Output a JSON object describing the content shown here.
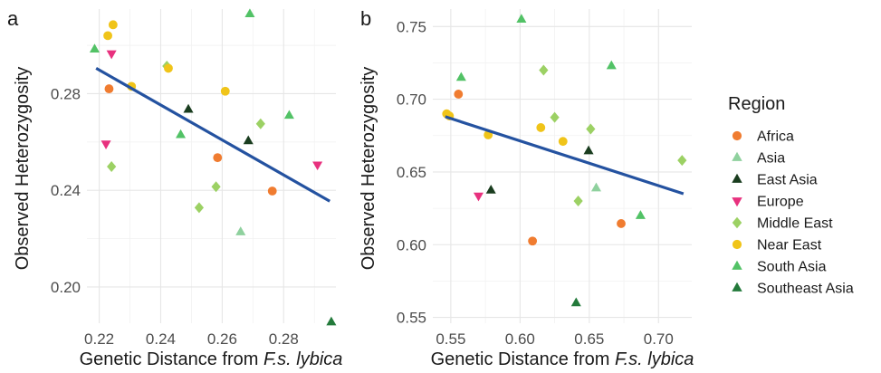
{
  "chart_data": [
    {
      "type": "scatter",
      "panel_tag": "a",
      "title": "",
      "xlabel_prefix": "Genetic Distance from ",
      "xlabel_italic": "F.s. lybica",
      "ylabel": "Observed Heterozygosity",
      "xlim": [
        0.216,
        0.297
      ],
      "ylim": [
        0.185,
        0.315
      ],
      "x_ticks": [
        0.22,
        0.24,
        0.26,
        0.28
      ],
      "x_tick_labels": [
        "0.22",
        "0.24",
        "0.26",
        "0.28"
      ],
      "y_ticks": [
        0.2,
        0.24,
        0.28
      ],
      "y_tick_labels": [
        "0.20",
        "0.24",
        "0.28"
      ],
      "grid": true,
      "trend_line": {
        "x": [
          0.219,
          0.295
        ],
        "y": [
          0.2905,
          0.2355
        ]
      },
      "points": [
        {
          "x": 0.2185,
          "y": 0.2984,
          "region": "South Asia"
        },
        {
          "x": 0.2228,
          "y": 0.304,
          "region": "Near East"
        },
        {
          "x": 0.2245,
          "y": 0.3085,
          "region": "Near East"
        },
        {
          "x": 0.224,
          "y": 0.2965,
          "region": "Europe"
        },
        {
          "x": 0.2232,
          "y": 0.282,
          "region": "Africa"
        },
        {
          "x": 0.2305,
          "y": 0.283,
          "region": "Near East"
        },
        {
          "x": 0.2222,
          "y": 0.2592,
          "region": "Europe"
        },
        {
          "x": 0.224,
          "y": 0.2498,
          "region": "Middle East"
        },
        {
          "x": 0.242,
          "y": 0.2914,
          "region": "Middle East"
        },
        {
          "x": 0.2425,
          "y": 0.2905,
          "region": "Near East"
        },
        {
          "x": 0.249,
          "y": 0.2735,
          "region": "East Asia"
        },
        {
          "x": 0.2465,
          "y": 0.263,
          "region": "South Asia"
        },
        {
          "x": 0.261,
          "y": 0.281,
          "region": "Near East"
        },
        {
          "x": 0.269,
          "y": 0.313,
          "region": "South Asia"
        },
        {
          "x": 0.2725,
          "y": 0.2675,
          "region": "Middle East"
        },
        {
          "x": 0.2685,
          "y": 0.2605,
          "region": "East Asia"
        },
        {
          "x": 0.2585,
          "y": 0.2535,
          "region": "Africa"
        },
        {
          "x": 0.258,
          "y": 0.2415,
          "region": "Middle East"
        },
        {
          "x": 0.2525,
          "y": 0.2328,
          "region": "Middle East"
        },
        {
          "x": 0.266,
          "y": 0.2228,
          "region": "Asia"
        },
        {
          "x": 0.2763,
          "y": 0.2397,
          "region": "Africa"
        },
        {
          "x": 0.2818,
          "y": 0.271,
          "region": "South Asia"
        },
        {
          "x": 0.291,
          "y": 0.2505,
          "region": "Europe"
        },
        {
          "x": 0.2955,
          "y": 0.1855,
          "region": "Southeast Asia"
        }
      ]
    },
    {
      "type": "scatter",
      "panel_tag": "b",
      "title": "",
      "xlabel_prefix": "Genetic Distance from ",
      "xlabel_italic": "F.s. lybica",
      "ylabel": "Observed Heterozygosity",
      "xlim": [
        0.537,
        0.724
      ],
      "ylim": [
        0.546,
        0.762
      ],
      "x_ticks": [
        0.55,
        0.6,
        0.65,
        0.7
      ],
      "x_tick_labels": [
        "0.55",
        "0.60",
        "0.65",
        "0.70"
      ],
      "y_ticks": [
        0.55,
        0.6,
        0.65,
        0.7,
        0.75
      ],
      "y_tick_labels": [
        "0.55",
        "0.60",
        "0.65",
        "0.70",
        "0.75"
      ],
      "grid": true,
      "trend_line": {
        "x": [
          0.546,
          0.718
        ],
        "y": [
          0.688,
          0.635
        ]
      },
      "points": [
        {
          "x": 0.547,
          "y": 0.69,
          "region": "Near East"
        },
        {
          "x": 0.549,
          "y": 0.6885,
          "region": "Near East"
        },
        {
          "x": 0.5555,
          "y": 0.7035,
          "region": "Africa"
        },
        {
          "x": 0.5575,
          "y": 0.715,
          "region": "South Asia"
        },
        {
          "x": 0.57,
          "y": 0.6335,
          "region": "Europe"
        },
        {
          "x": 0.577,
          "y": 0.6755,
          "region": "Near East"
        },
        {
          "x": 0.579,
          "y": 0.6375,
          "region": "East Asia"
        },
        {
          "x": 0.601,
          "y": 0.755,
          "region": "South Asia"
        },
        {
          "x": 0.609,
          "y": 0.6025,
          "region": "Africa"
        },
        {
          "x": 0.615,
          "y": 0.6805,
          "region": "Near East"
        },
        {
          "x": 0.617,
          "y": 0.72,
          "region": "Middle East"
        },
        {
          "x": 0.625,
          "y": 0.6875,
          "region": "Middle East"
        },
        {
          "x": 0.631,
          "y": 0.671,
          "region": "Near East"
        },
        {
          "x": 0.642,
          "y": 0.63,
          "region": "Middle East"
        },
        {
          "x": 0.6405,
          "y": 0.56,
          "region": "Southeast Asia"
        },
        {
          "x": 0.6495,
          "y": 0.6645,
          "region": "East Asia"
        },
        {
          "x": 0.651,
          "y": 0.6795,
          "region": "Middle East"
        },
        {
          "x": 0.655,
          "y": 0.639,
          "region": "Asia"
        },
        {
          "x": 0.666,
          "y": 0.723,
          "region": "South Asia"
        },
        {
          "x": 0.673,
          "y": 0.6145,
          "region": "Africa"
        },
        {
          "x": 0.687,
          "y": 0.62,
          "region": "South Asia"
        },
        {
          "x": 0.717,
          "y": 0.658,
          "region": "Middle East"
        }
      ]
    }
  ],
  "trend_color": "#2452a0",
  "legend": {
    "title": "Region",
    "entries": [
      {
        "label": "Africa",
        "color": "#f07c30",
        "shape": "circle"
      },
      {
        "label": "Asia",
        "color": "#8fd19e",
        "shape": "triangle-up"
      },
      {
        "label": "East Asia",
        "color": "#1a3d1f",
        "shape": "triangle-up"
      },
      {
        "label": "Europe",
        "color": "#e8317e",
        "shape": "triangle-down"
      },
      {
        "label": "Middle East",
        "color": "#9cd164",
        "shape": "diamond"
      },
      {
        "label": "Near East",
        "color": "#f0c419",
        "shape": "circle"
      },
      {
        "label": "South Asia",
        "color": "#52c266",
        "shape": "triangle-up"
      },
      {
        "label": "Southeast Asia",
        "color": "#237a3b",
        "shape": "triangle-up"
      }
    ]
  }
}
